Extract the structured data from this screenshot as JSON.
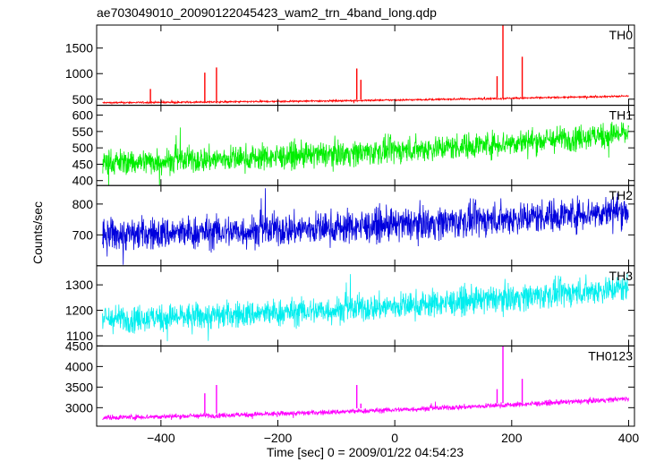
{
  "chart_data": {
    "type": "line",
    "title": "ae703049010_20090122045423_wam2_trn_4band_long.qdp",
    "xlabel": "Time [sec] 0 = 2009/01/22 04:54:23",
    "ylabel": "Counts/sec",
    "xlim": [
      -510,
      410
    ],
    "xticks": [
      -400,
      -200,
      0,
      200,
      400
    ],
    "x_tick_labels": [
      "−400",
      "−200",
      "0",
      "200",
      "400"
    ],
    "grid": false,
    "panels": [
      {
        "name": "TH0",
        "color": "#ff0000",
        "ylim": [
          380,
          1950
        ],
        "yticks": [
          500,
          1000,
          1500
        ],
        "baseline_start": 430,
        "baseline_end": 560,
        "noise": 12,
        "spikes": [
          [
            -418,
            700
          ],
          [
            -325,
            1020
          ],
          [
            -305,
            1120
          ],
          [
            -65,
            1100
          ],
          [
            -58,
            880
          ],
          [
            175,
            950
          ],
          [
            185,
            1950
          ],
          [
            218,
            1330
          ]
        ]
      },
      {
        "name": "TH1",
        "color": "#00ee00",
        "ylim": [
          385,
          630
        ],
        "yticks": [
          400,
          450,
          500,
          550,
          600
        ],
        "baseline_start": 455,
        "baseline_end": 545,
        "noise": 28,
        "spikes": []
      },
      {
        "name": "TH2",
        "color": "#0000dd",
        "ylim": [
          600,
          860
        ],
        "yticks": [
          700,
          800
        ],
        "baseline_start": 700,
        "baseline_end": 780,
        "noise": 38,
        "spikes": []
      },
      {
        "name": "TH3",
        "color": "#00eeee",
        "ylim": [
          1060,
          1375
        ],
        "yticks": [
          1100,
          1200,
          1300
        ],
        "baseline_start": 1165,
        "baseline_end": 1290,
        "noise": 38,
        "spikes": []
      },
      {
        "name": "TH0123",
        "color": "#ff00ff",
        "ylim": [
          2550,
          4500
        ],
        "yticks": [
          3000,
          3500,
          4000,
          4500
        ],
        "baseline_start": 2760,
        "baseline_end": 3220,
        "noise": 45,
        "spikes": [
          [
            -325,
            3350
          ],
          [
            -305,
            3550
          ],
          [
            -65,
            3550
          ],
          [
            -58,
            3100
          ],
          [
            175,
            3450
          ],
          [
            185,
            4500
          ],
          [
            218,
            3700
          ]
        ]
      }
    ]
  }
}
